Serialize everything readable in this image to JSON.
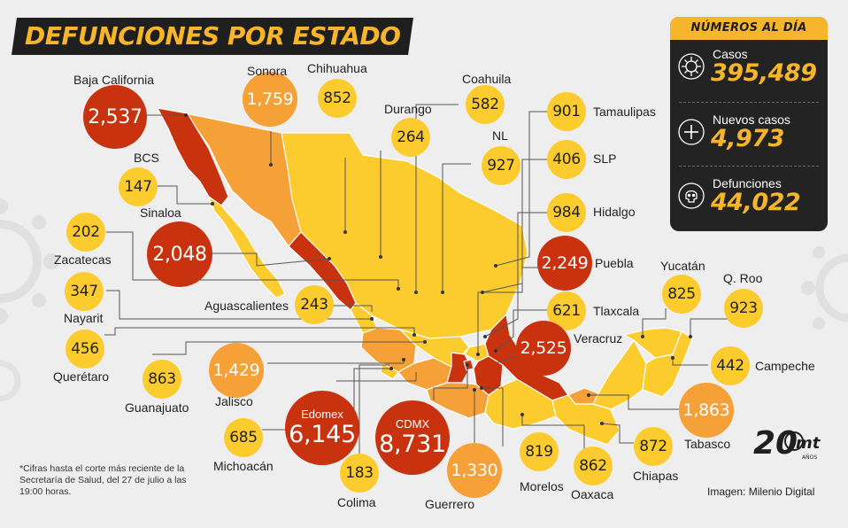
{
  "title": "DEFUNCIONES POR ESTADO",
  "panel": {
    "header": "NÚMEROS AL DÍA",
    "stats": [
      {
        "label": "Casos",
        "value": "395,489",
        "icon": "virus-icon"
      },
      {
        "label": "Nuevos casos",
        "value": "4,973",
        "icon": "plus-icon"
      },
      {
        "label": "Defunciones",
        "value": "44,022",
        "icon": "skull-icon"
      }
    ]
  },
  "states": [
    {
      "name": "Baja California",
      "value": "2,537"
    },
    {
      "name": "Sonora",
      "value": "1,759"
    },
    {
      "name": "Chihuahua",
      "value": "852"
    },
    {
      "name": "Durango",
      "value": "264"
    },
    {
      "name": "Coahuila",
      "value": "582"
    },
    {
      "name": "NL",
      "value": "927"
    },
    {
      "name": "Tamaulipas",
      "value": "901"
    },
    {
      "name": "SLP",
      "value": "406"
    },
    {
      "name": "Hidalgo",
      "value": "984"
    },
    {
      "name": "BCS",
      "value": "147"
    },
    {
      "name": "Sinaloa",
      "value": "2,048"
    },
    {
      "name": "Zacatecas",
      "value": "202"
    },
    {
      "name": "Nayarit",
      "value": "347"
    },
    {
      "name": "Querétaro",
      "value": "456"
    },
    {
      "name": "Aguascalientes",
      "value": "243"
    },
    {
      "name": "Guanajuato",
      "value": "863"
    },
    {
      "name": "Jalisco",
      "value": "1,429"
    },
    {
      "name": "Michoacán",
      "value": "685"
    },
    {
      "name": "Edomex",
      "value": "6,145"
    },
    {
      "name": "CDMX",
      "value": "8,731"
    },
    {
      "name": "Colima",
      "value": "183"
    },
    {
      "name": "Guerrero",
      "value": "1,330"
    },
    {
      "name": "Morelos",
      "value": "819"
    },
    {
      "name": "Oaxaca",
      "value": "862"
    },
    {
      "name": "Chiapas",
      "value": "872"
    },
    {
      "name": "Tabasco",
      "value": "1,863"
    },
    {
      "name": "Campeche",
      "value": "442"
    },
    {
      "name": "Yucatán",
      "value": "825"
    },
    {
      "name": "Q. Roo",
      "value": "923"
    },
    {
      "name": "Puebla",
      "value": "2,249"
    },
    {
      "name": "Tlaxcala",
      "value": "621"
    },
    {
      "name": "Veracruz",
      "value": "2,525"
    }
  ],
  "footnote": "*Cifras hasta el corte más reciente de la Secretaría de Salud, del 27 de julio a las 19:00 horas.",
  "credit": "Imagen: Milenio Digital",
  "logo": {
    "number": "20",
    "brand": "mt",
    "sub": "AÑOS"
  },
  "colors": {
    "high": "#c9320f",
    "medium": "#f6a038",
    "low": "#fccc2e",
    "panel_bg": "#232323",
    "accent": "#f7b52b"
  }
}
